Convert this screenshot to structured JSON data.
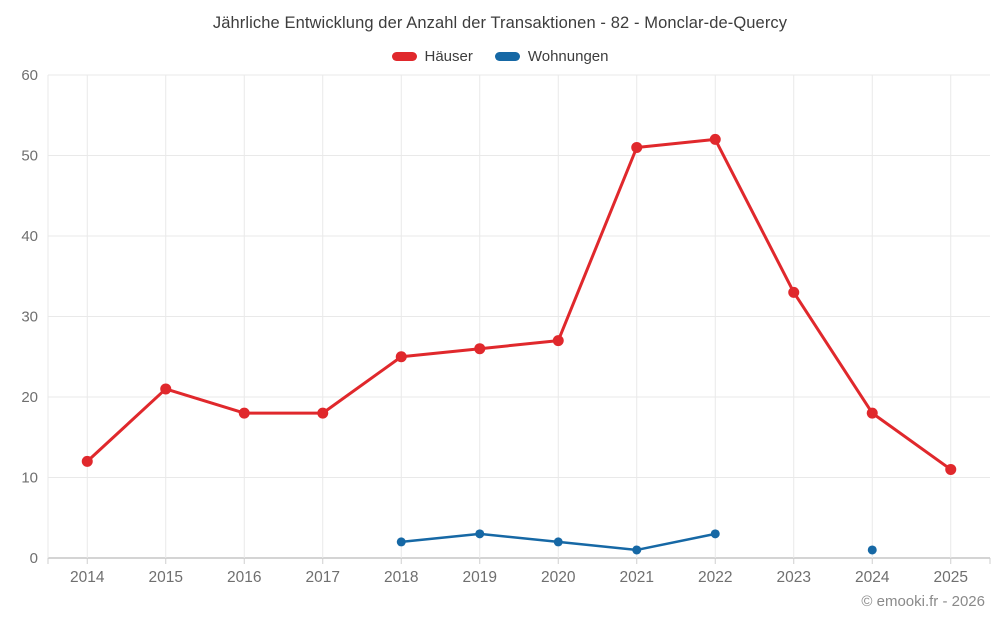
{
  "page": {
    "background": "#ffffff"
  },
  "chart_data": {
    "type": "line",
    "title": "Jährliche Entwicklung der Anzahl der Transaktionen - 82 - Monclar-de-Quercy",
    "categories": [
      "2014",
      "2015",
      "2016",
      "2017",
      "2018",
      "2019",
      "2020",
      "2021",
      "2022",
      "2023",
      "2024",
      "2025"
    ],
    "series": [
      {
        "name": "Häuser",
        "color": "#e0282c",
        "values": [
          12,
          21,
          18,
          18,
          25,
          26,
          27,
          51,
          52,
          33,
          18,
          11
        ]
      },
      {
        "name": "Wohnungen",
        "color": "#1668a5",
        "values": [
          null,
          null,
          null,
          null,
          2,
          3,
          2,
          1,
          3,
          null,
          1,
          null
        ]
      }
    ],
    "xlabel": "",
    "ylabel": "",
    "ylim": [
      0,
      60
    ],
    "ytick_step": 10,
    "yticks": [
      0,
      10,
      20,
      30,
      40,
      50,
      60
    ],
    "grid": true,
    "legend_position": "top-center",
    "marker_style": "filled-circle",
    "gap_policy": "missing years are not connected; 2024 Wohnungen is an isolated point"
  },
  "colors": {
    "grid_line": "#e9e9e9",
    "axis_line": "#a8a8a8",
    "tick_mark": "#cfcfcf",
    "axis_text": "#6f6f6f",
    "title_text": "#3d3d3d",
    "footer_text": "#8a8a8a"
  },
  "footer": {
    "credit": "© emooki.fr - 2026"
  }
}
